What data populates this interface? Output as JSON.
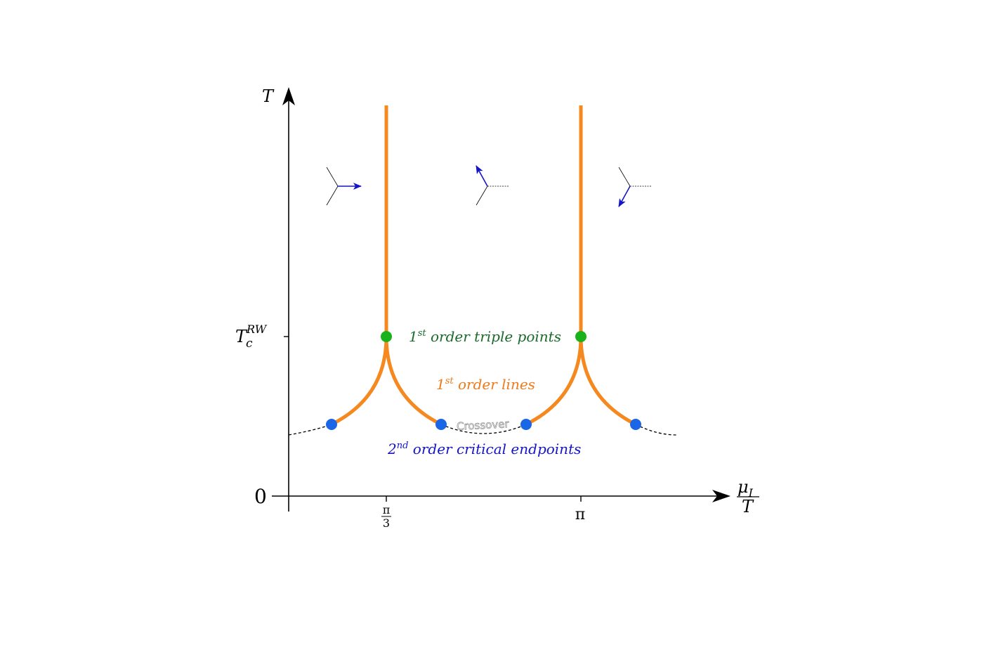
{
  "axes": {
    "y_label": "T",
    "x_label_num": "μ",
    "x_label_sub": "I",
    "x_label_den": "T",
    "origin_label": "0",
    "y_tick": {
      "base": "T",
      "sub": "c",
      "sup": "RW"
    },
    "x_ticks": [
      {
        "num": "π",
        "den": "3"
      },
      {
        "text": "π"
      }
    ]
  },
  "annotations": {
    "triple_points": {
      "sup": "st",
      "pre": "1",
      "post": " order triple points",
      "color": "#1a6b2a"
    },
    "first_order_lines": {
      "sup": "st",
      "pre": "1",
      "post": " order lines",
      "color": "#f07a1a"
    },
    "crossover": {
      "text": "Crossover",
      "color": "#999999"
    },
    "critical_endpoints": {
      "sup": "nd",
      "pre": "2",
      "post": " order critical endpoints",
      "color": "#1515c8"
    }
  },
  "colors": {
    "first_order_line": "#f5891f",
    "triple_point": "#1ab21a",
    "endpoint": "#1a66e6",
    "arrow": "#1515c8",
    "axis": "#000000"
  },
  "icons": [
    "polyakov-loop-phase-right-icon",
    "polyakov-loop-phase-up-left-icon",
    "polyakov-loop-phase-down-left-icon"
  ]
}
